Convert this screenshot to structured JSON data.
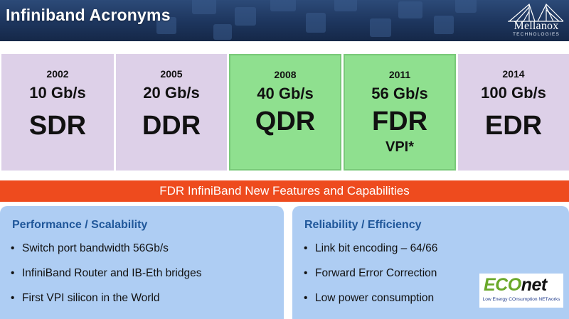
{
  "header": {
    "title": "Infiniband Acronyms"
  },
  "logo": {
    "name": "Mellanox",
    "sub": "TECHNOLOGIES",
    "icon": "bridge-icon"
  },
  "generations": [
    {
      "year": "2002",
      "speed": "10 Gb/s",
      "acronym": "SDR",
      "extra": "",
      "color": "#ddd0e8"
    },
    {
      "year": "2005",
      "speed": "20 Gb/s",
      "acronym": "DDR",
      "extra": "",
      "color": "#ddd0e8"
    },
    {
      "year": "2008",
      "speed": "40 Gb/s",
      "acronym": "QDR",
      "extra": "",
      "color": "#8fe08f"
    },
    {
      "year": "2011",
      "speed": "56 Gb/s",
      "acronym": "FDR",
      "extra": "VPI*",
      "color": "#8fe08f"
    },
    {
      "year": "2014",
      "speed": "100 Gb/s",
      "acronym": "EDR",
      "extra": "",
      "color": "#ddd0e8"
    }
  ],
  "banner": {
    "text": "FDR InfiniBand New Features and Capabilities",
    "color": "#ee4b1e"
  },
  "left_panel": {
    "title": "Performance / Scalability",
    "items": [
      "Switch port bandwidth 56Gb/s",
      "InfiniBand Router and IB-Eth bridges",
      "First VPI silicon in the World"
    ]
  },
  "right_panel": {
    "title": "Reliability / Efficiency",
    "items": [
      "Link bit encoding – 64/66",
      "Forward Error Correction",
      "Low power consumption"
    ]
  },
  "econet": {
    "eco": "ECO",
    "net": "net",
    "tagline": "Low Energy COnsumption NETworks"
  },
  "bullet": "•"
}
